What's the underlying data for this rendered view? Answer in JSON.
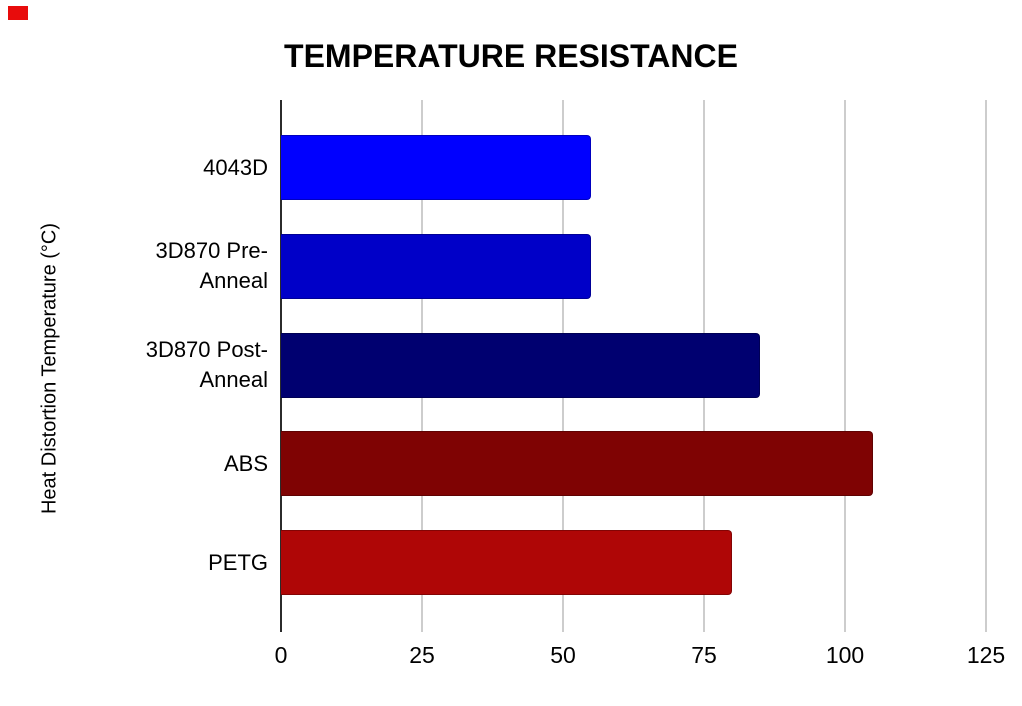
{
  "chart_data": {
    "type": "bar",
    "orientation": "horizontal",
    "title": "TEMPERATURE RESISTANCE",
    "ylabel": "Heat Distortion Temperature (°C)",
    "xlabel": "",
    "categories": [
      "4043D",
      "3D870 Pre-Anneal",
      "3D870 Post-Anneal",
      "ABS",
      "PETG"
    ],
    "label_lines": [
      "4043D",
      "3D870 Pre-\nAnneal",
      "3D870 Post-\nAnneal",
      "ABS",
      "PETG"
    ],
    "values": [
      55,
      55,
      85,
      105,
      80
    ],
    "bar_colors": [
      "#0000ff",
      "#0000c8",
      "#000070",
      "#7f0303",
      "#af0606"
    ],
    "xlim": [
      0,
      125
    ],
    "x_ticks": [
      "0",
      "25",
      "50",
      "75",
      "100",
      "125"
    ],
    "grid": true,
    "legend": false,
    "grid_color": "#cdcdcd",
    "zero_axis_color": "#2b2b2b"
  },
  "decorations": {
    "red_marker_color": "#e80c0c"
  }
}
